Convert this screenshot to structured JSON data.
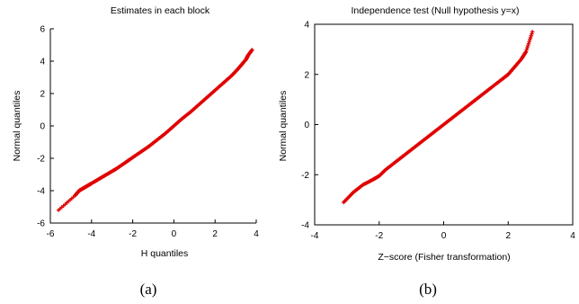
{
  "chart_data": [
    {
      "type": "scatter",
      "marker": "+",
      "color": "#e00000",
      "title": "Estimates in each block",
      "xlabel": "H quantiles",
      "ylabel": "Normal quantiles",
      "caption": "(a)",
      "xlim": [
        -6,
        4
      ],
      "ylim": [
        -6,
        6
      ],
      "xticks": [
        -6,
        -4,
        -2,
        0,
        2,
        4
      ],
      "yticks": [
        -6,
        -4,
        -2,
        0,
        2,
        4,
        6
      ],
      "box": false,
      "grid": false,
      "x": [
        -5.6,
        -4.8,
        -4.6,
        -4.4,
        -4.2,
        -4.0,
        -3.6,
        -3.2,
        -2.8,
        -2.4,
        -2.0,
        -1.6,
        -1.2,
        -0.8,
        -0.4,
        0.0,
        0.4,
        0.8,
        1.2,
        1.6,
        2.0,
        2.4,
        2.8,
        3.1,
        3.3,
        3.5,
        3.6,
        3.8
      ],
      "y": [
        -5.2,
        -4.3,
        -4.0,
        -3.85,
        -3.7,
        -3.55,
        -3.25,
        -2.95,
        -2.65,
        -2.3,
        -1.95,
        -1.6,
        -1.25,
        -0.85,
        -0.45,
        0.0,
        0.45,
        0.85,
        1.3,
        1.75,
        2.2,
        2.65,
        3.1,
        3.5,
        3.8,
        4.1,
        4.35,
        4.7
      ]
    },
    {
      "type": "scatter",
      "marker": "+",
      "color": "#e00000",
      "title": "Independence test (Null hypothesis y=x)",
      "xlabel": "Z−score (Fisher transformation)",
      "ylabel": "Normal quantiles",
      "caption": "(b)",
      "xlim": [
        -4,
        4
      ],
      "ylim": [
        -4,
        4
      ],
      "xticks": [
        -4,
        -2,
        0,
        2,
        4
      ],
      "yticks": [
        -4,
        -2,
        0,
        2,
        4
      ],
      "box": true,
      "grid": false,
      "x": [
        -3.1,
        -2.8,
        -2.5,
        -2.2,
        -2.0,
        -1.8,
        -1.5,
        -1.2,
        -0.9,
        -0.6,
        -0.3,
        0.0,
        0.3,
        0.6,
        0.9,
        1.2,
        1.5,
        1.8,
        2.0,
        2.2,
        2.4,
        2.55,
        2.75
      ],
      "y": [
        -3.1,
        -2.7,
        -2.4,
        -2.2,
        -2.05,
        -1.8,
        -1.5,
        -1.2,
        -0.9,
        -0.6,
        -0.3,
        0.0,
        0.3,
        0.6,
        0.9,
        1.2,
        1.5,
        1.8,
        2.0,
        2.3,
        2.6,
        2.9,
        3.7
      ]
    }
  ]
}
